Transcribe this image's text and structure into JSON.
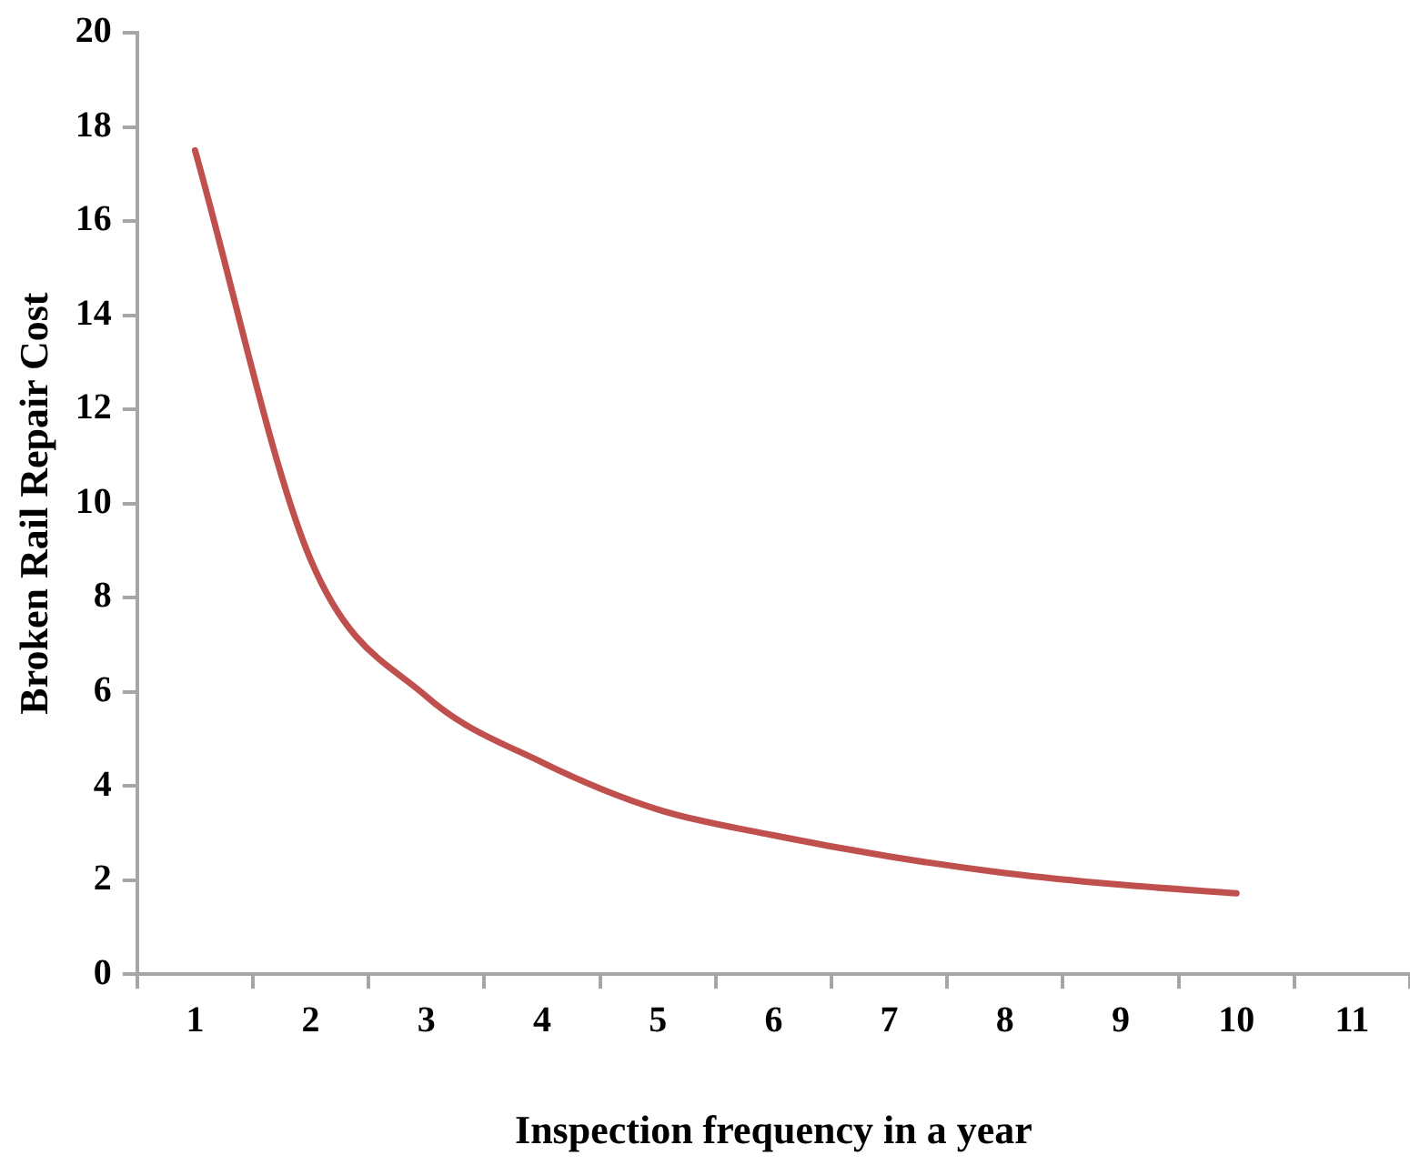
{
  "chart_data": {
    "type": "line",
    "xlabel": "Inspection frequency in a year",
    "ylabel": "Broken Rail Repair Cost",
    "categories": [
      "1",
      "2",
      "3",
      "4",
      "5",
      "6",
      "7",
      "8",
      "9",
      "10",
      "11"
    ],
    "series": [
      {
        "color": "#c0504d",
        "values": [
          17.5,
          8.8,
          5.9,
          4.5,
          3.5,
          2.95,
          2.5,
          2.15,
          1.9,
          1.72,
          null
        ]
      }
    ],
    "ylim": [
      0,
      20
    ],
    "yticks": [
      0,
      2,
      4,
      6,
      8,
      10,
      12,
      14,
      16,
      18,
      20
    ],
    "grid": false,
    "legend": false,
    "marker": "none",
    "line_style": "solid"
  }
}
